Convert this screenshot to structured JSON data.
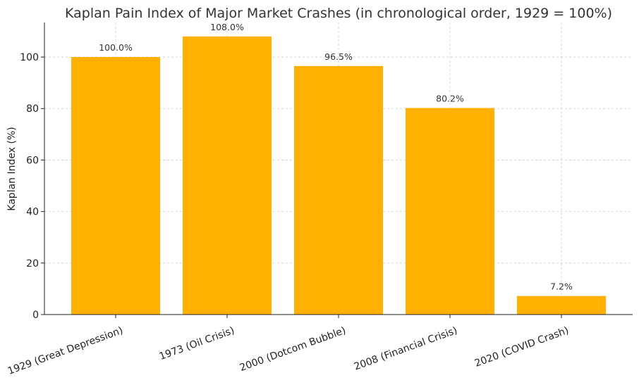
{
  "chart_data": {
    "type": "bar",
    "title": "Kaplan Pain Index of Major Market Crashes (in chronological order, 1929 = 100%)",
    "xlabel": "",
    "ylabel": "Kaplan Index (%)",
    "categories": [
      "1929 (Great Depression)",
      "1973 (Oil Crisis)",
      "2000 (Dotcom Bubble)",
      "2008 (Financial Crisis)",
      "2020 (COVID Crash)"
    ],
    "values": [
      100.0,
      108.0,
      96.5,
      80.2,
      7.2
    ],
    "data_labels": [
      "100.0%",
      "108.0%",
      "96.5%",
      "80.2%",
      "7.2%"
    ],
    "ylim": [
      0,
      113.4
    ],
    "yticks": [
      0,
      20,
      40,
      60,
      80,
      100
    ],
    "ytick_labels": [
      "0",
      "20",
      "40",
      "60",
      "80",
      "100"
    ],
    "grid": true,
    "bar_color": "#FFB000"
  }
}
